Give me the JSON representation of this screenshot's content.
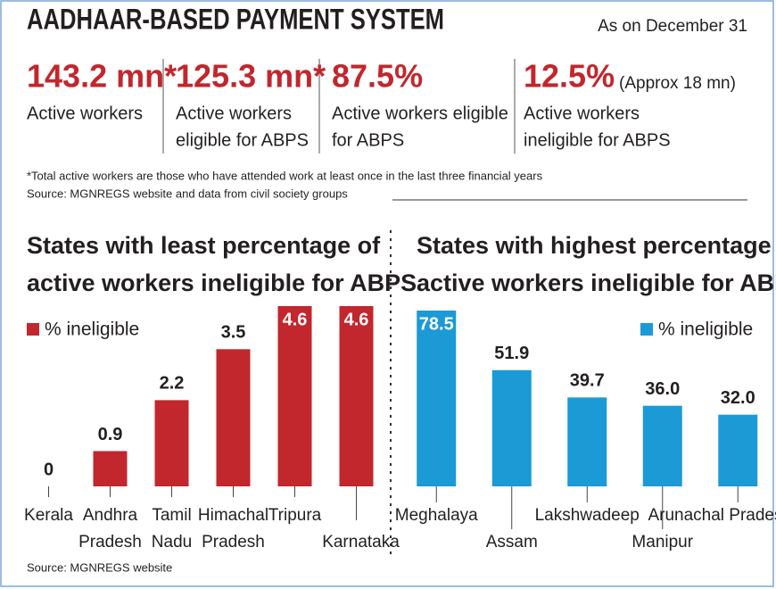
{
  "header": {
    "title": "AADHAAR-BASED PAYMENT SYSTEM",
    "date": "As on December 31"
  },
  "stats": [
    {
      "value": "143.2 mn*",
      "label": [
        "Active workers"
      ]
    },
    {
      "value": "125.3 mn*",
      "label": [
        "Active workers",
        "eligible for ABPS"
      ]
    },
    {
      "value": "87.5%",
      "label": [
        "Active workers eligible",
        "for ABPS"
      ]
    },
    {
      "value": "12.5%",
      "note": "(Approx 18 mn)",
      "label": [
        "Active workers",
        "ineligible for ABPS"
      ]
    }
  ],
  "footnote": "*Total active workers are those who have attended work at least once in the last three financial years",
  "source": "Source: MGNREGS website and data from civil society groups",
  "chart_data": [
    {
      "type": "bar",
      "title": [
        "States with least percentage of",
        "active workers ineligible for ABPS"
      ],
      "categories": [
        "Kerala",
        "Andhra Pradesh",
        "Tamil Nadu",
        "Himachal Pradesh",
        "Tripura",
        "Karnataka"
      ],
      "series": [
        {
          "name": "% ineligible",
          "color": "#c1272d",
          "values": [
            0,
            0.9,
            2.2,
            3.5,
            4.6,
            4.6
          ]
        }
      ],
      "source": "Source: MGNREGS website"
    },
    {
      "type": "bar",
      "title": [
        "States with highest percentage of",
        "active workers ineligible for ABPS"
      ],
      "categories": [
        "Meghalaya",
        "Assam",
        "Lakshwadeep",
        "Manipur",
        "Arunachal Pradesh"
      ],
      "series": [
        {
          "name": "% ineligible",
          "color": "#1b9ad6",
          "values": [
            78.5,
            51.9,
            39.7,
            36.0,
            32.0
          ],
          "value_labels": [
            "78.5",
            "51.9",
            "39.7",
            "36.0",
            "32.0"
          ]
        }
      ]
    }
  ]
}
